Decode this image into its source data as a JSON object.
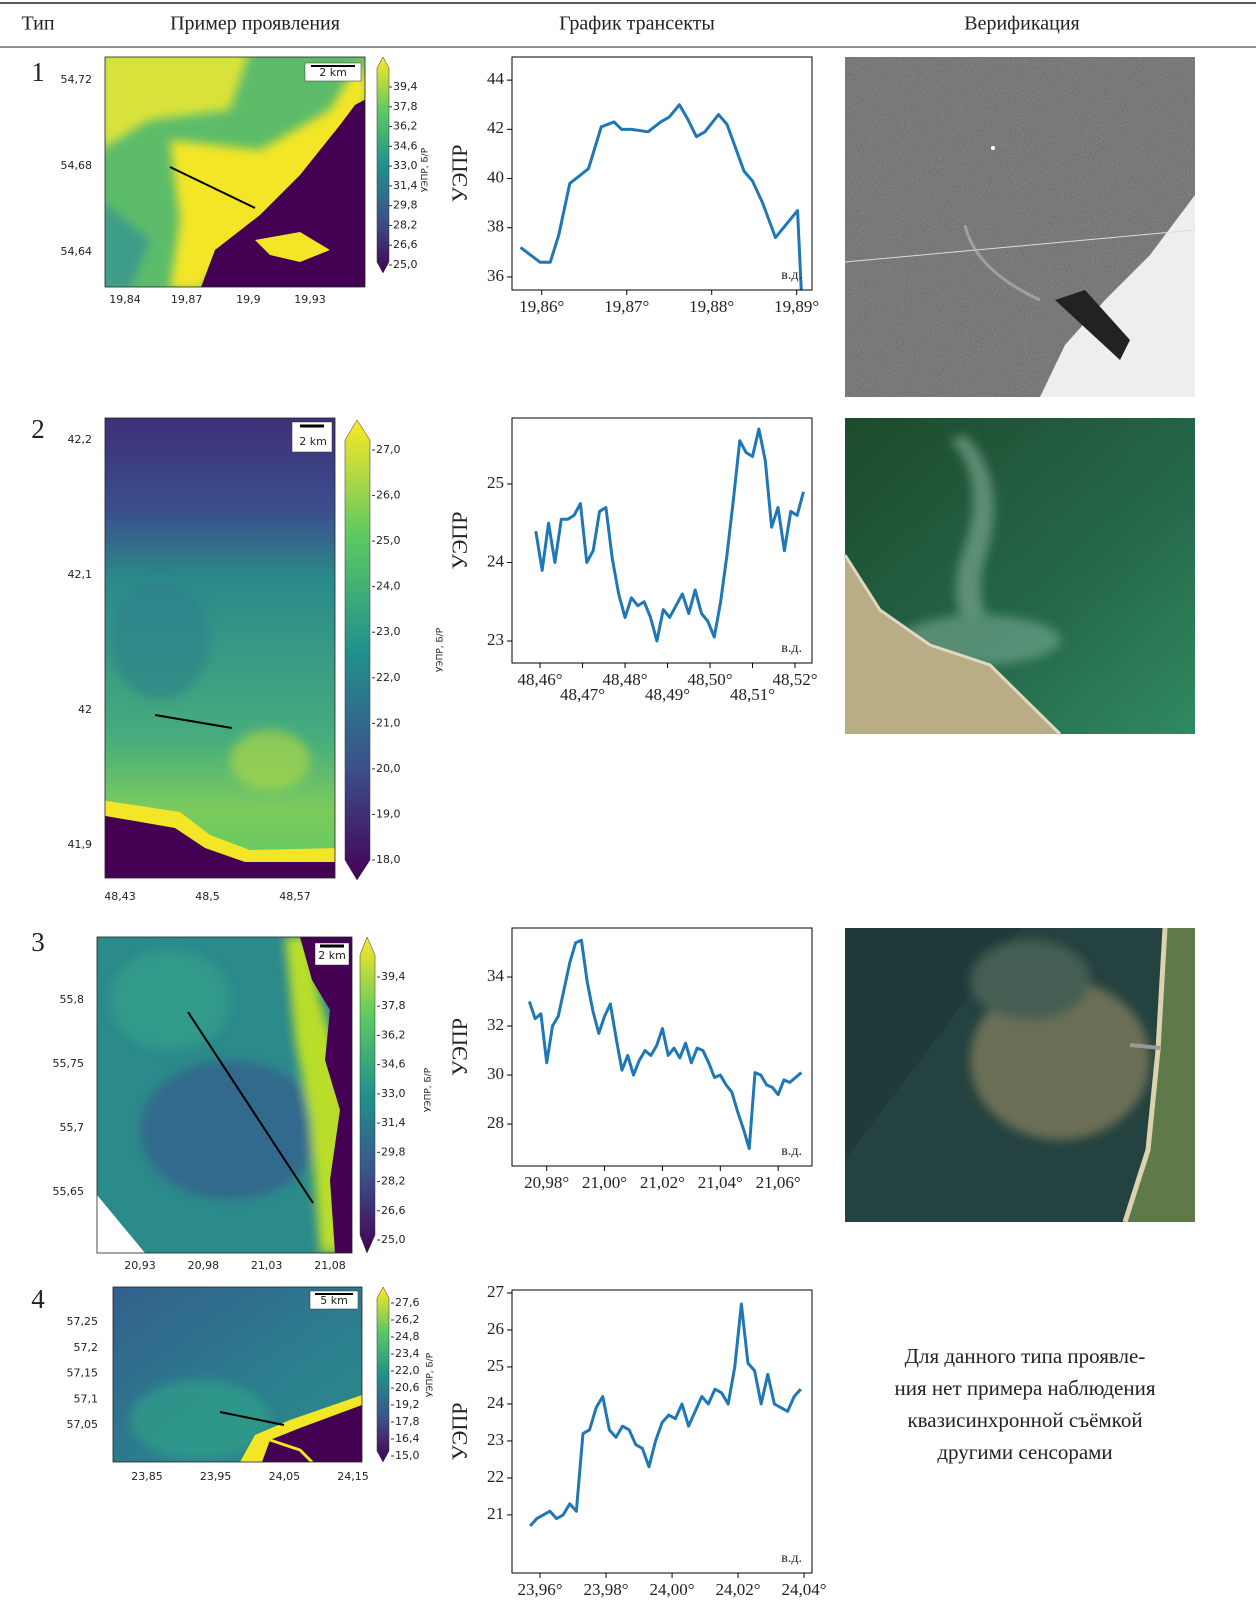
{
  "table": {
    "header": [
      "Тип",
      "Пример проявления",
      "График трансекты",
      "Верификация"
    ],
    "rows": [
      {
        "type": "1",
        "map": {
          "scale": "2 km",
          "xticks": [
            "19,84",
            "19,87",
            "19,9",
            "19,93"
          ],
          "yticks": [
            "54,72",
            "54,68",
            "54,64"
          ],
          "colorbar_ticks": [
            "39,4",
            "37,8",
            "36,2",
            "34,6",
            "33,0",
            "31,4",
            "29,8",
            "28,2",
            "26,6",
            "25,0"
          ],
          "colorbar_label": "УЭПР, Б/Р"
        }
      },
      {
        "type": "2",
        "map": {
          "scale": "2 km",
          "xticks": [
            "48,43",
            "48,5",
            "48,57"
          ],
          "yticks": [
            "42,2",
            "42,1",
            "42",
            "41,9"
          ],
          "colorbar_ticks": [
            "27,0",
            "26,0",
            "25,0",
            "24,0",
            "23,0",
            "22,0",
            "21,0",
            "20,0",
            "19,0",
            "18,0"
          ],
          "colorbar_label": "УЭПР, Б/Р"
        }
      },
      {
        "type": "3",
        "map": {
          "scale": "2 km",
          "xticks": [
            "20,93",
            "20,98",
            "21,03",
            "21,08"
          ],
          "yticks": [
            "55,8",
            "55,75",
            "55,7",
            "55,65"
          ],
          "colorbar_ticks": [
            "39,4",
            "37,8",
            "36,2",
            "34,6",
            "33,0",
            "31,4",
            "29,8",
            "28,2",
            "26,6",
            "25,0"
          ],
          "colorbar_label": "УЭПР, Б/Р"
        }
      },
      {
        "type": "4",
        "map": {
          "scale": "5 km",
          "xticks": [
            "23,85",
            "23,95",
            "24,05",
            "24,15"
          ],
          "yticks": [
            "57,25",
            "57,2",
            "57,15",
            "57,1",
            "57,05"
          ],
          "colorbar_ticks": [
            "27,6",
            "26,2",
            "24,8",
            "23,4",
            "22,0",
            "20,6",
            "19,2",
            "17,8",
            "16,4",
            "15,0"
          ],
          "colorbar_label": "УЭПР, Б/Р"
        },
        "verification": [
          "Для данного типа проявле-",
          "ния нет примера наблюдения",
          "квазисинхронной съёмкой",
          "другими сенсорами"
        ]
      }
    ]
  },
  "chart_data": [
    {
      "type": "line",
      "ylabel": "УЭПР",
      "annotation": "в.д.",
      "color": "#1f77b4",
      "x": [
        19.8575,
        19.8598,
        19.861,
        19.862,
        19.8633,
        19.8655,
        19.867,
        19.8685,
        19.8694,
        19.8705,
        19.8725,
        19.874,
        19.875,
        19.8762,
        19.8772,
        19.8782,
        19.8792,
        19.8808,
        19.8818,
        19.8838,
        19.8848,
        19.886,
        19.8875,
        19.8901,
        19.8906
      ],
      "values": [
        37.2,
        36.6,
        36.6,
        37.7,
        39.8,
        40.4,
        42.1,
        42.3,
        42.0,
        42.0,
        41.9,
        42.3,
        42.5,
        43.0,
        42.4,
        41.7,
        41.9,
        42.6,
        42.2,
        40.3,
        39.9,
        39.0,
        37.6,
        38.7,
        35.0
      ],
      "xlim": [
        19.8565,
        19.8918
      ],
      "ylim": [
        35.47,
        44.94
      ],
      "xticks": [
        {
          "value": 19.86,
          "label": "19,86°"
        },
        {
          "value": 19.87,
          "label": "19,87°"
        },
        {
          "value": 19.88,
          "label": "19,88°"
        },
        {
          "value": 19.89,
          "label": "19,89°"
        }
      ],
      "yticks": [
        36,
        38,
        40,
        42,
        44
      ]
    },
    {
      "type": "line",
      "ylabel": "УЭПР",
      "annotation": "в.д.",
      "color": "#1f77b4",
      "x": [
        48.459,
        48.4605,
        48.462,
        48.4635,
        48.465,
        48.4665,
        48.468,
        48.4695,
        48.471,
        48.4725,
        48.474,
        48.4755,
        48.477,
        48.4785,
        48.48,
        48.4815,
        48.483,
        48.4845,
        48.486,
        48.4875,
        48.489,
        48.4905,
        48.492,
        48.4935,
        48.495,
        48.4965,
        48.498,
        48.4995,
        48.501,
        48.5025,
        48.504,
        48.5055,
        48.507,
        48.5085,
        48.51,
        48.5115,
        48.513,
        48.5145,
        48.516,
        48.5175,
        48.519,
        48.5205,
        48.522
      ],
      "values": [
        24.4,
        23.9,
        24.5,
        24.0,
        24.55,
        24.55,
        24.6,
        24.75,
        24.0,
        24.15,
        24.65,
        24.7,
        24.05,
        23.6,
        23.3,
        23.55,
        23.45,
        23.5,
        23.3,
        23.0,
        23.4,
        23.3,
        23.45,
        23.6,
        23.35,
        23.65,
        23.35,
        23.25,
        23.05,
        23.5,
        24.1,
        24.8,
        25.55,
        25.4,
        25.35,
        25.7,
        25.3,
        24.45,
        24.7,
        24.15,
        24.65,
        24.6,
        24.9
      ],
      "xlim": [
        48.4534,
        48.524
      ],
      "ylim": [
        22.72,
        25.84
      ],
      "xticks": [
        {
          "value": 48.46,
          "label": "48,46°"
        },
        {
          "value": 48.47,
          "label": "48,47°"
        },
        {
          "value": 48.48,
          "label": "48,48°"
        },
        {
          "value": 48.49,
          "label": "48,49°"
        },
        {
          "value": 48.5,
          "label": "48,50°"
        },
        {
          "value": 48.51,
          "label": "48,51°"
        },
        {
          "value": 48.52,
          "label": "48,52°"
        }
      ],
      "yticks": [
        23,
        24,
        25
      ]
    },
    {
      "type": "line",
      "ylabel": "УЭПР",
      "annotation": "в.д.",
      "color": "#1f77b4",
      "x": [
        20.974,
        20.976,
        20.978,
        20.98,
        20.982,
        20.984,
        20.986,
        20.988,
        20.99,
        20.992,
        20.994,
        20.996,
        20.998,
        21.0,
        21.002,
        21.004,
        21.006,
        21.008,
        21.01,
        21.012,
        21.014,
        21.016,
        21.018,
        21.02,
        21.022,
        21.024,
        21.026,
        21.028,
        21.03,
        21.032,
        21.034,
        21.036,
        21.038,
        21.04,
        21.042,
        21.044,
        21.046,
        21.048,
        21.05,
        21.052,
        21.054,
        21.056,
        21.058,
        21.06,
        21.062,
        21.064,
        21.066,
        21.068
      ],
      "values": [
        33.0,
        32.3,
        32.5,
        30.5,
        32.0,
        32.4,
        33.5,
        34.6,
        35.4,
        35.5,
        33.8,
        32.6,
        31.7,
        32.4,
        32.9,
        31.5,
        30.2,
        30.8,
        30.0,
        30.6,
        31.0,
        30.8,
        31.2,
        31.9,
        30.8,
        31.1,
        30.7,
        31.3,
        30.5,
        31.1,
        31.0,
        30.5,
        29.9,
        30.0,
        29.6,
        29.3,
        28.5,
        27.8,
        27.0,
        30.1,
        30.0,
        29.6,
        29.5,
        29.2,
        29.8,
        29.7,
        29.9,
        30.1
      ],
      "xlim": [
        20.968,
        21.0717
      ],
      "ylim": [
        26.29,
        36.0
      ],
      "xticks": [
        {
          "value": 20.98,
          "label": "20,98°"
        },
        {
          "value": 21.0,
          "label": "21,00°"
        },
        {
          "value": 21.02,
          "label": "21,02°"
        },
        {
          "value": 21.04,
          "label": "21,04°"
        },
        {
          "value": 21.06,
          "label": "21,06°"
        }
      ],
      "yticks": [
        28,
        30,
        32,
        34
      ]
    },
    {
      "type": "line",
      "ylabel": "УЭПР",
      "annotation": "в.д.",
      "color": "#1f77b4",
      "x": [
        23.957,
        23.959,
        23.961,
        23.963,
        23.965,
        23.967,
        23.969,
        23.971,
        23.973,
        23.975,
        23.977,
        23.979,
        23.981,
        23.983,
        23.985,
        23.987,
        23.989,
        23.991,
        23.993,
        23.995,
        23.997,
        23.999,
        24.001,
        24.003,
        24.005,
        24.007,
        24.009,
        24.011,
        24.013,
        24.015,
        24.017,
        24.019,
        24.021,
        24.023,
        24.025,
        24.027,
        24.029,
        24.031,
        24.033,
        24.035,
        24.037,
        24.039
      ],
      "values": [
        20.7,
        20.9,
        21.0,
        21.1,
        20.9,
        21.0,
        21.3,
        21.1,
        23.2,
        23.3,
        23.9,
        24.2,
        23.3,
        23.1,
        23.4,
        23.3,
        22.9,
        22.8,
        22.3,
        23.0,
        23.5,
        23.7,
        23.6,
        24.0,
        23.4,
        23.8,
        24.2,
        24.0,
        24.4,
        24.3,
        24.0,
        25.0,
        26.7,
        25.1,
        24.9,
        24.0,
        24.8,
        24.0,
        23.9,
        23.8,
        24.2,
        24.4
      ],
      "xlim": [
        23.9515,
        24.0424
      ],
      "ylim": [
        19.43,
        27.08
      ],
      "xticks": [
        {
          "value": 23.96,
          "label": "23,96°"
        },
        {
          "value": 23.98,
          "label": "23,98°"
        },
        {
          "value": 24.0,
          "label": "24,00°"
        },
        {
          "value": 24.02,
          "label": "24,02°"
        },
        {
          "value": 24.04,
          "label": "24,04°"
        }
      ],
      "yticks": [
        21,
        22,
        23,
        24,
        25,
        26,
        27
      ]
    }
  ]
}
